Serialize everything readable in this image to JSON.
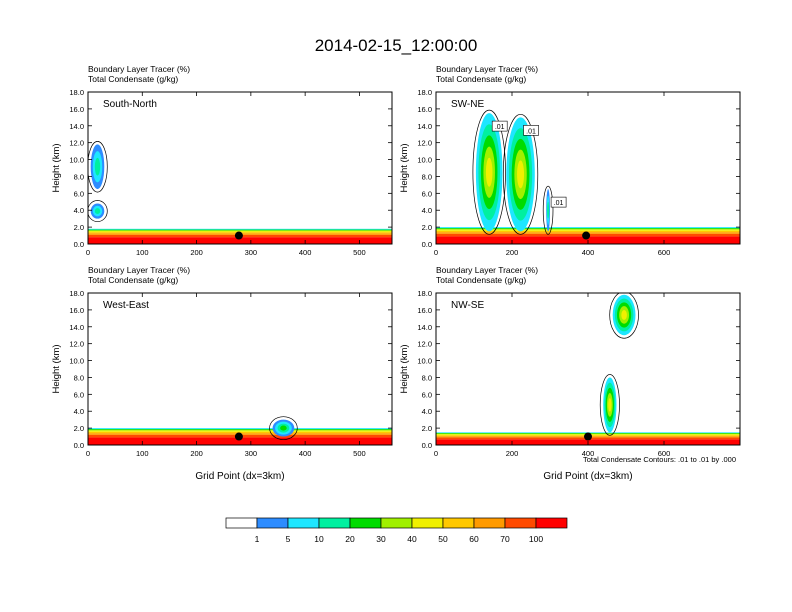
{
  "title": "2014-02-15_12:00:00",
  "footnote": "Total Condensate Contours: .01 to .01 by .000",
  "colorbar": {
    "colors": [
      "#ffffff",
      "#2d8cff",
      "#1ee6ff",
      "#00f0a0",
      "#00dc00",
      "#a0f000",
      "#f0f000",
      "#ffc800",
      "#ff9a00",
      "#ff4a00",
      "#ff0000"
    ],
    "labels": [
      "1",
      "5",
      "10",
      "20",
      "30",
      "40",
      "50",
      "60",
      "70",
      "100"
    ]
  },
  "chart_data": [
    {
      "type": "cross-section",
      "panel": "South-North",
      "subtitle": [
        "Boundary Layer Tracer   (%)",
        "Total Condensate   (g/kg)"
      ],
      "ylabel": "Height (km)",
      "xlabel": "",
      "xlim": [
        0,
        560
      ],
      "ylim": [
        0,
        18
      ],
      "xticks": [
        0,
        100,
        200,
        300,
        400,
        500
      ],
      "yticks": [
        "0.0",
        "2.0",
        "4.0",
        "6.0",
        "8.0",
        "10.0",
        "12.0",
        "14.0",
        "16.0",
        "18.0"
      ],
      "pbl_top_km": 1.8,
      "site_marker_x": 278,
      "tracer_features": [
        {
          "x": [
            5,
            30
          ],
          "z": [
            6.5,
            11.8
          ],
          "max_percent": 10
        },
        {
          "x": [
            5,
            30
          ],
          "z": [
            3.0,
            4.8
          ],
          "max_percent": 10
        }
      ]
    },
    {
      "type": "cross-section",
      "panel": "SW-NE",
      "subtitle": [
        "Boundary Layer Tracer   (%)",
        "Total Condensate   (g/kg)"
      ],
      "ylabel": "Height (km)",
      "xlabel": "",
      "xlim": [
        0,
        800
      ],
      "ylim": [
        0,
        18
      ],
      "xticks": [
        0,
        200,
        400,
        600
      ],
      "yticks": [
        "0.0",
        "2.0",
        "4.0",
        "6.0",
        "8.0",
        "10.0",
        "12.0",
        "14.0",
        "16.0",
        "18.0"
      ],
      "pbl_top_km": 2.0,
      "site_marker_x": 395,
      "contour_labels": [
        ".01",
        ".01",
        ".01"
      ],
      "tracer_features": [
        {
          "x": [
            105,
            175
          ],
          "z": [
            1.5,
            15.5
          ],
          "max_percent": 50
        },
        {
          "x": [
            185,
            260
          ],
          "z": [
            1.5,
            15.0
          ],
          "max_percent": 50
        },
        {
          "x": [
            290,
            300
          ],
          "z": [
            1.5,
            6.5
          ],
          "max_percent": 10
        }
      ]
    },
    {
      "type": "cross-section",
      "panel": "West-East",
      "subtitle": [
        "Boundary Layer Tracer   (%)",
        "Total Condensate   (g/kg)"
      ],
      "ylabel": "Height (km)",
      "xlabel": "Grid Point (dx=3km)",
      "xlim": [
        0,
        560
      ],
      "ylim": [
        0,
        18
      ],
      "xticks": [
        0,
        100,
        200,
        300,
        400,
        500
      ],
      "yticks": [
        "0.0",
        "2.0",
        "4.0",
        "6.0",
        "8.0",
        "10.0",
        "12.0",
        "14.0",
        "16.0",
        "18.0"
      ],
      "pbl_top_km": 2.0,
      "site_marker_x": 278,
      "tracer_features": [
        {
          "x": [
            340,
            380
          ],
          "z": [
            1.0,
            3.0
          ],
          "max_percent": 20
        }
      ]
    },
    {
      "type": "cross-section",
      "panel": "NW-SE",
      "subtitle": [
        "Boundary Layer Tracer   (%)",
        "Total Condensate   (g/kg)"
      ],
      "ylabel": "Height (km)",
      "xlabel": "Grid Point (dx=3km)",
      "xlim": [
        0,
        800
      ],
      "ylim": [
        0,
        18
      ],
      "xticks": [
        0,
        200,
        400,
        600
      ],
      "yticks": [
        "0.0",
        "2.0",
        "4.0",
        "6.0",
        "8.0",
        "10.0",
        "12.0",
        "14.0",
        "16.0",
        "18.0"
      ],
      "pbl_top_km": 1.5,
      "site_marker_x": 400,
      "tracer_features": [
        {
          "x": [
            465,
            525
          ],
          "z": [
            13.0,
            17.8
          ],
          "max_percent": 50
        },
        {
          "x": [
            440,
            475
          ],
          "z": [
            1.5,
            8.0
          ],
          "max_percent": 50
        }
      ]
    }
  ]
}
